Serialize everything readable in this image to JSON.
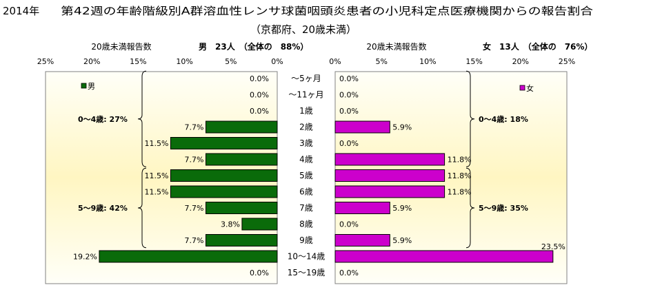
{
  "header": {
    "year": "2014年",
    "title": "第42週の年齢階級別A群溶血性レンサ球菌咽頭炎患者の小児科定点医療機関からの報告割合",
    "subtitle": "（京都府、20歳未満）"
  },
  "chart_data": {
    "type": "bar",
    "orientation": "horizontal",
    "layout": "population-pyramid",
    "categories": [
      "～5ヶ月",
      "～11ヶ月",
      "1歳",
      "2歳",
      "3歳",
      "4歳",
      "5歳",
      "6歳",
      "7歳",
      "8歳",
      "9歳",
      "10～14歳",
      "15～19歳"
    ],
    "xlim": [
      0,
      25
    ],
    "x_ticks": [
      "0%",
      "5%",
      "10%",
      "15%",
      "20%",
      "25%"
    ],
    "male": {
      "axis_label": "20歳未満報告数",
      "summary_label": "男　23人　（全体の　88%）",
      "legend": "男",
      "color": "#0a6b0a",
      "values": [
        0.0,
        0.0,
        0.0,
        7.7,
        11.5,
        7.7,
        11.5,
        11.5,
        7.7,
        3.8,
        7.7,
        19.2,
        0.0
      ],
      "value_labels": [
        "0.0%",
        "0.0%",
        "0.0%",
        "7.7%",
        "11.5%",
        "7.7%",
        "11.5%",
        "11.5%",
        "7.7%",
        "3.8%",
        "7.7%",
        "19.2%",
        "0.0%"
      ],
      "groups": [
        {
          "label": "0～4歳: 27%",
          "from": 0,
          "to": 5
        },
        {
          "label": "5～9歳: 42%",
          "from": 6,
          "to": 10
        }
      ]
    },
    "female": {
      "axis_label": "20歳未満報告数",
      "summary_label": "女　13人　（全体の　76%）",
      "legend": "女",
      "color": "#cc00cc",
      "values": [
        0.0,
        0.0,
        0.0,
        5.9,
        0.0,
        11.8,
        11.8,
        11.8,
        5.9,
        0.0,
        5.9,
        23.5,
        0.0
      ],
      "value_labels": [
        "0.0%",
        "0.0%",
        "0.0%",
        "5.9%",
        "0.0%",
        "11.8%",
        "11.8%",
        "11.8%",
        "5.9%",
        "0.0%",
        "5.9%",
        "23.5%",
        "0.0%"
      ],
      "groups": [
        {
          "label": "0～4歳: 18%",
          "from": 0,
          "to": 5
        },
        {
          "label": "5～9歳: 35%",
          "from": 6,
          "to": 10
        }
      ]
    }
  }
}
